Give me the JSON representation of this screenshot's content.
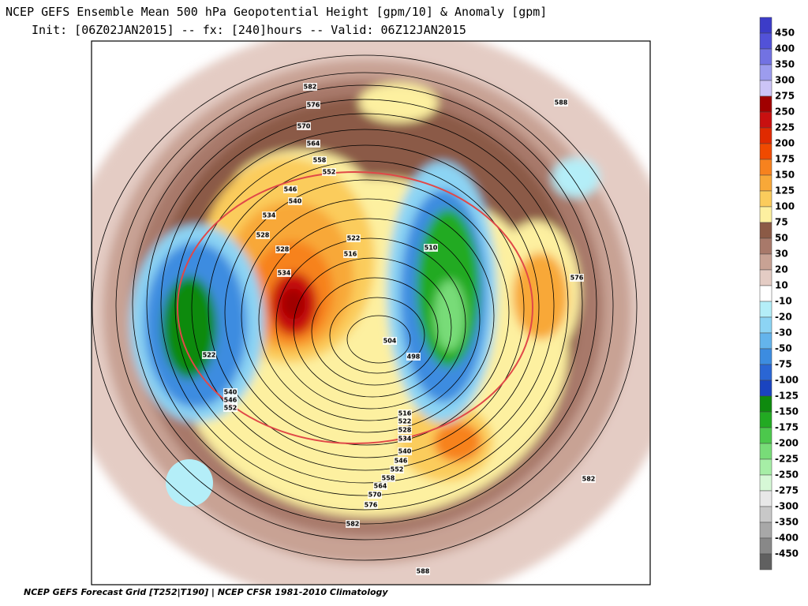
{
  "header": {
    "title": "NCEP GEFS Ensemble Mean 500 hPa Geopotential Height [gpm/10] & Anomaly [gpm]",
    "subtitle": "Init: [06Z02JAN2015] -- fx: [240]hours -- Valid: 06Z12JAN2015"
  },
  "map": {
    "contour_labels": [
      582,
      576,
      570,
      564,
      558,
      552,
      546,
      540,
      534,
      528,
      528,
      534,
      522,
      516,
      510,
      504,
      498,
      522,
      540,
      546,
      552,
      516,
      522,
      528,
      534,
      540,
      546,
      552,
      558,
      564,
      570,
      576,
      582,
      588,
      582,
      576,
      588
    ]
  },
  "colorbar": {
    "labels": [
      450,
      400,
      350,
      300,
      275,
      250,
      225,
      200,
      175,
      150,
      125,
      100,
      75,
      50,
      30,
      20,
      10,
      -10,
      -20,
      -30,
      -50,
      -75,
      -100,
      -125,
      -150,
      -175,
      -200,
      -225,
      -250,
      -275,
      -300,
      -350,
      -400,
      -450
    ],
    "colors": [
      "#3c3cc8",
      "#5252d8",
      "#7272e2",
      "#9c9cee",
      "#ccc4f6",
      "#a00000",
      "#c81010",
      "#e02a00",
      "#f04a00",
      "#f7821e",
      "#f8a838",
      "#fbcc5c",
      "#fdf0a0",
      "#8b5a46",
      "#a8796a",
      "#c8a294",
      "#e4ccc4",
      "#ffffff",
      "#b4eef8",
      "#8cd4f4",
      "#64b4ec",
      "#3c8ce0",
      "#2a66d4",
      "#1a44c0",
      "#0e8a0e",
      "#22aa22",
      "#4cc84c",
      "#78dc78",
      "#a6eea6",
      "#d6f8d6",
      "#e8e8e8",
      "#c8c8c8",
      "#a8a8a8",
      "#888888",
      "#606060"
    ]
  },
  "footer": "NCEP GEFS Forecast Grid [T252|T190] | NCEP CFSR 1981-2010 Climatology"
}
